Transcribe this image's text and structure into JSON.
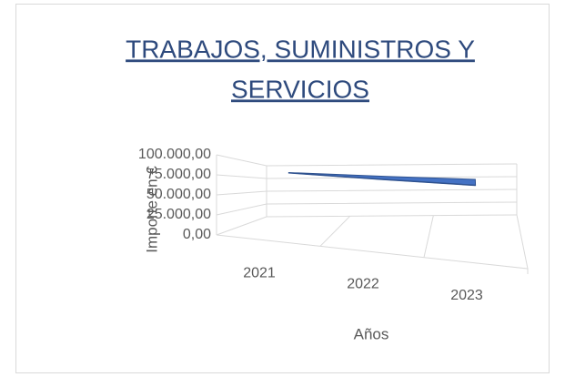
{
  "chart_data": {
    "type": "line3d",
    "title": "TRABAJOS, SUMINISTROS Y SERVICIOS",
    "y_label": "Importe en €",
    "x_label": "Años",
    "categories": [
      "2021",
      "2022",
      "2023"
    ],
    "values": [
      85000,
      83000,
      82000
    ],
    "color": "#4472c4",
    "ylim": [
      0,
      100000
    ],
    "yticks": [
      {
        "value": 0,
        "label": "0,00"
      },
      {
        "value": 25000,
        "label": "25.000,00"
      },
      {
        "value": 50000,
        "label": "50.000,00"
      },
      {
        "value": 75000,
        "label": "75.000,00"
      },
      {
        "value": 100000,
        "label": "100.000,00"
      }
    ],
    "grid": true
  }
}
